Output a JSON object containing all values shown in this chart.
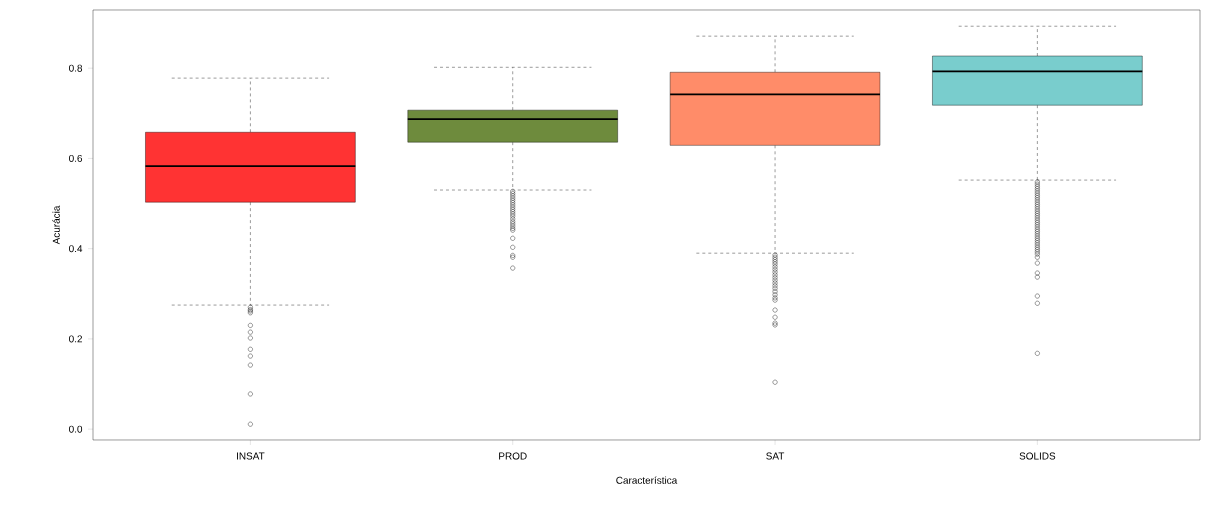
{
  "chart_data": {
    "type": "box",
    "xlabel": "Característica",
    "ylabel": "Acurácia",
    "categories": [
      "INSAT",
      "PROD",
      "SAT",
      "SOLIDS"
    ],
    "colors": [
      "#ff3333",
      "#6e8b3d",
      "#ff8c69",
      "#79cdcd"
    ],
    "ylim": [
      -0.024,
      0.929
    ],
    "yticks": [
      {
        "value": 0,
        "label": "0.0"
      },
      {
        "value": 0.2,
        "label": "0.2"
      },
      {
        "value": 0.4,
        "label": "0.4"
      },
      {
        "value": 0.6,
        "label": "0.6"
      },
      {
        "value": 0.8,
        "label": "0.8"
      }
    ],
    "boxes": [
      {
        "low": 0.275,
        "q1": 0.503,
        "median": 0.583,
        "q3": 0.658,
        "high": 0.778,
        "outliers": [
          0.27,
          0.265,
          0.262,
          0.258,
          0.23,
          0.215,
          0.202,
          0.177,
          0.162,
          0.142,
          0.078,
          0.011
        ]
      },
      {
        "low": 0.53,
        "q1": 0.636,
        "median": 0.687,
        "q3": 0.707,
        "high": 0.802,
        "outliers": [
          0.527,
          0.522,
          0.517,
          0.512,
          0.507,
          0.502,
          0.497,
          0.492,
          0.487,
          0.482,
          0.477,
          0.472,
          0.466,
          0.46,
          0.455,
          0.45,
          0.445,
          0.441,
          0.423,
          0.403,
          0.385,
          0.381,
          0.357
        ]
      },
      {
        "low": 0.39,
        "q1": 0.629,
        "median": 0.742,
        "q3": 0.791,
        "high": 0.871,
        "outliers": [
          0.386,
          0.381,
          0.376,
          0.371,
          0.366,
          0.36,
          0.354,
          0.348,
          0.342,
          0.336,
          0.33,
          0.324,
          0.318,
          0.312,
          0.305,
          0.298,
          0.291,
          0.286,
          0.264,
          0.248,
          0.235,
          0.231,
          0.104
        ]
      },
      {
        "low": 0.552,
        "q1": 0.718,
        "median": 0.793,
        "q3": 0.827,
        "high": 0.893,
        "outliers": [
          0.548,
          0.543,
          0.538,
          0.533,
          0.528,
          0.523,
          0.518,
          0.513,
          0.508,
          0.503,
          0.498,
          0.493,
          0.488,
          0.483,
          0.478,
          0.473,
          0.468,
          0.463,
          0.458,
          0.453,
          0.448,
          0.443,
          0.438,
          0.433,
          0.428,
          0.423,
          0.418,
          0.413,
          0.408,
          0.403,
          0.398,
          0.393,
          0.388,
          0.381,
          0.368,
          0.346,
          0.337,
          0.295,
          0.279,
          0.168
        ]
      }
    ]
  }
}
